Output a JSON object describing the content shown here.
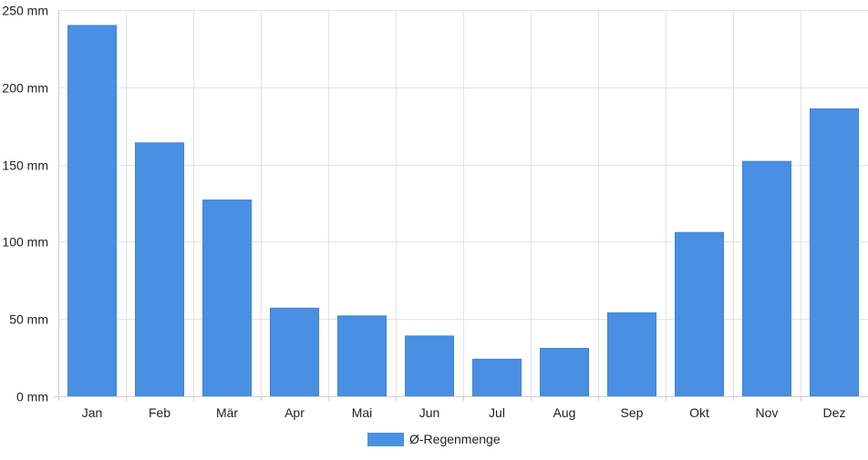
{
  "chart_data": {
    "type": "bar",
    "categories": [
      "Jan",
      "Feb",
      "Mär",
      "Apr",
      "Mai",
      "Jun",
      "Jul",
      "Aug",
      "Sep",
      "Okt",
      "Nov",
      "Dez"
    ],
    "series": [
      {
        "name": "Ø-Regenmenge",
        "values": [
          240,
          164,
          127,
          57,
          52,
          39,
          24,
          31,
          54,
          106,
          152,
          186
        ],
        "color": "#4a90e2"
      }
    ],
    "y_ticks": [
      "0 mm",
      "50 mm",
      "100 mm",
      "150 mm",
      "200 mm",
      "250 mm"
    ],
    "ylim": [
      0,
      250
    ],
    "y_unit": "mm",
    "grid": true,
    "legend_position": "bottom-center"
  }
}
